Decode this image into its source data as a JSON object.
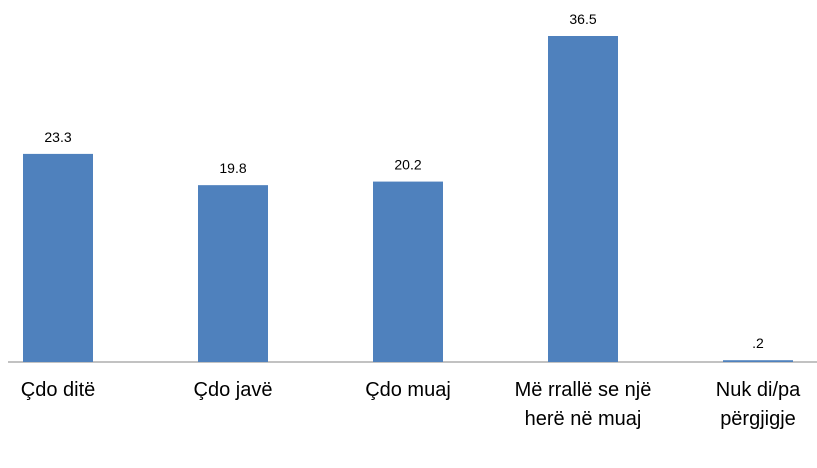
{
  "chart_data": {
    "type": "bar",
    "categories": [
      "Çdo ditë",
      "Çdo javë",
      "Çdo muaj",
      "Më rrallë se një herë në muaj",
      "Nuk di/pa përgjigje"
    ],
    "values": [
      23.3,
      19.8,
      20.2,
      36.5,
      0.2
    ],
    "value_labels": [
      "23.3",
      "19.8",
      "20.2",
      "36.5",
      ".2"
    ],
    "color": "#4f81bd"
  }
}
